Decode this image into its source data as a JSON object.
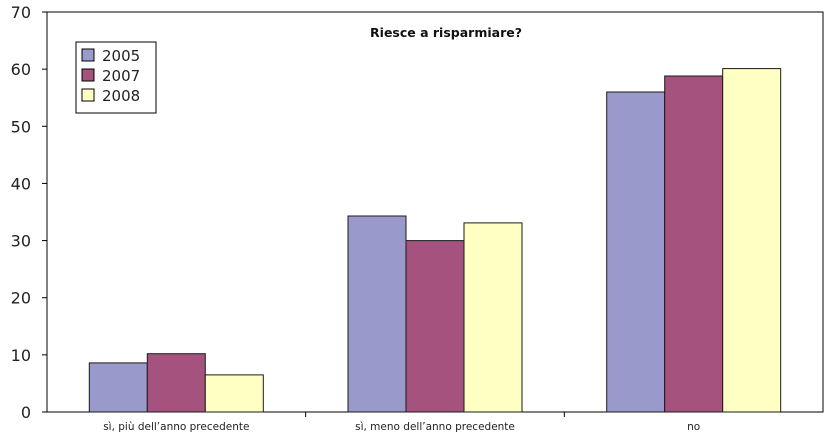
{
  "chart_data": {
    "type": "bar",
    "title": "Riesce a risparmiare?",
    "xlabel": "",
    "ylabel": "",
    "categories": [
      "sì, più dell’anno precedente",
      "sì, meno dell’anno precedente",
      "no"
    ],
    "series": [
      {
        "name": "2005",
        "color": "#9999cc",
        "values": [
          8.6,
          34.3,
          56.0
        ]
      },
      {
        "name": "2007",
        "color": "#a5527e",
        "values": [
          10.2,
          30.0,
          58.8
        ]
      },
      {
        "name": "2008",
        "color": "#ffffc4",
        "values": [
          6.5,
          33.1,
          60.1
        ]
      }
    ],
    "ylim": [
      0,
      70
    ],
    "yticks": [
      0,
      10,
      20,
      30,
      40,
      50,
      60,
      70
    ],
    "legend_position": "top-left",
    "grid": false,
    "bar_outline_color": "#1a1a1a"
  }
}
